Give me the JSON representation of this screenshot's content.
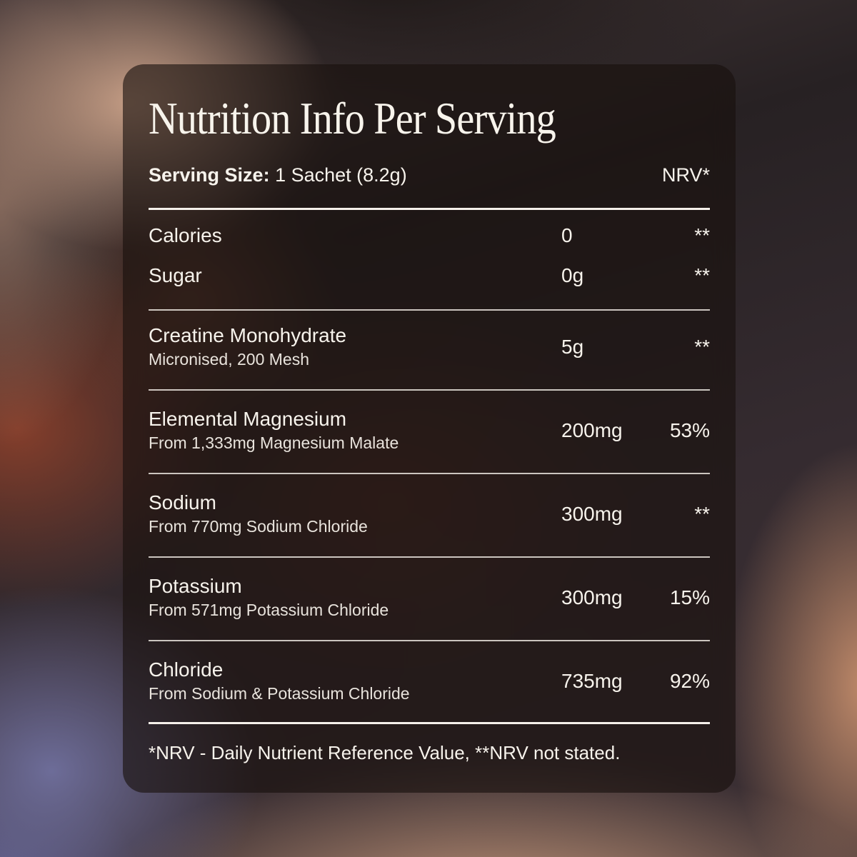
{
  "panel": {
    "title": "Nutrition Info Per Serving",
    "serving": {
      "label": "Serving Size:",
      "value": "1 Sachet (8.2g)",
      "nrv_header": "NRV*"
    },
    "simple_rows": [
      {
        "name": "Calories",
        "value": "0",
        "nrv": "**"
      },
      {
        "name": "Sugar",
        "value": "0g",
        "nrv": "**"
      }
    ],
    "nutrient_rows": [
      {
        "name": "Creatine Monohydrate",
        "detail": "Micronised, 200 Mesh",
        "value": "5g",
        "nrv": "**"
      },
      {
        "name": "Elemental Magnesium",
        "detail": "From 1,333mg Magnesium Malate",
        "value": "200mg",
        "nrv": "53%"
      },
      {
        "name": "Sodium",
        "detail": "From 770mg Sodium Chloride",
        "value": "300mg",
        "nrv": "**"
      },
      {
        "name": "Potassium",
        "detail": "From 571mg Potassium Chloride",
        "value": "300mg",
        "nrv": "15%"
      },
      {
        "name": "Chloride",
        "detail": "From Sodium & Potassium Chloride",
        "value": "735mg",
        "nrv": "92%"
      }
    ],
    "footnote": "*NRV - Daily Nutrient Reference Value, **NRV not stated."
  },
  "colors": {
    "text": "#f7f3ec",
    "divider": "#f5f0ea",
    "panel_tint": "rgba(24,16,13,0.62)"
  }
}
